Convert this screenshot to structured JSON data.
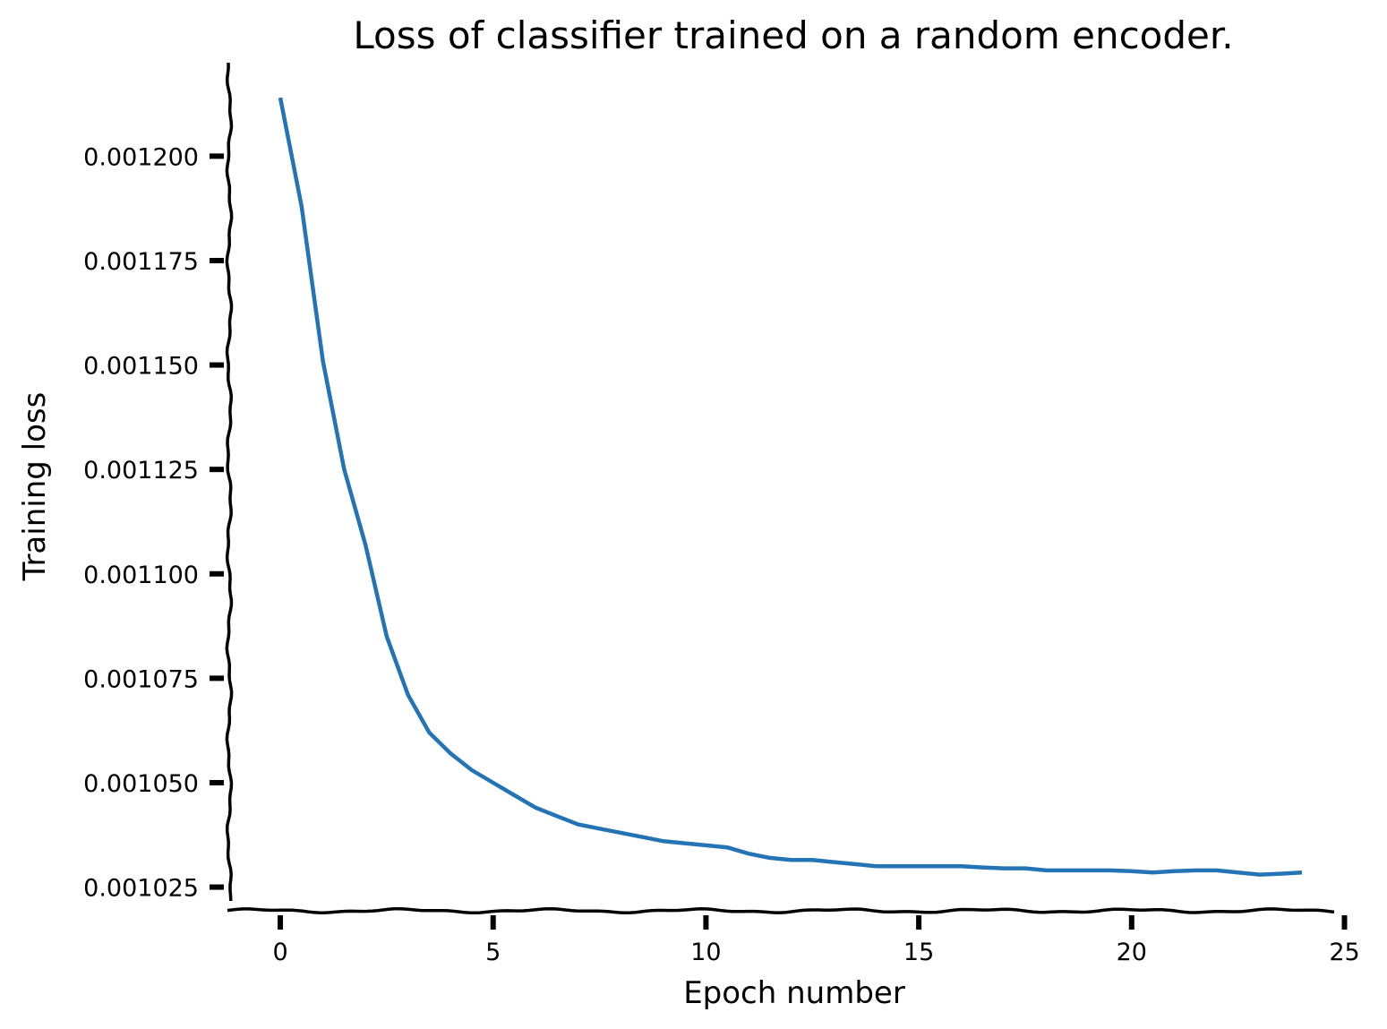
{
  "chart_data": {
    "type": "line",
    "title": "Loss of classifier trained on a random encoder.",
    "xlabel": "Epoch number",
    "ylabel": "Training loss",
    "xlim": [
      -1.2,
      25.2
    ],
    "ylim": [
      0.00101933,
      0.00122238
    ],
    "xticks": [
      0,
      5,
      10,
      15,
      20,
      25
    ],
    "xtick_labels": [
      "0",
      "5",
      "10",
      "15",
      "20",
      "25"
    ],
    "yticks": [
      0.001025,
      0.00105,
      0.001075,
      0.0011,
      0.001125,
      0.00115,
      0.001175,
      0.0012
    ],
    "ytick_labels": [
      "0.001025",
      "0.001050",
      "0.001075",
      "0.001100",
      "0.001125",
      "0.001150",
      "0.001175",
      "0.001200"
    ],
    "grid": false,
    "line_color": "#2474b5",
    "series": [
      {
        "x": [
          0,
          0.5,
          1,
          1.5,
          2,
          2.5,
          3,
          3.5,
          4,
          4.5,
          5,
          5.5,
          6,
          6.5,
          7,
          7.5,
          8,
          8.5,
          9,
          9.5,
          10,
          10.5,
          11,
          11.5,
          12,
          12.5,
          13,
          13.5,
          14,
          14.5,
          15,
          15.5,
          16,
          16.5,
          17,
          17.5,
          18,
          18.5,
          19,
          19.5,
          20,
          20.5,
          21,
          21.5,
          22,
          22.5,
          23,
          23.5,
          24
        ],
        "y": [
          0.001214,
          0.001188,
          0.001151,
          0.001125,
          0.001107,
          0.001085,
          0.001071,
          0.001062,
          0.001057,
          0.001053,
          0.00105,
          0.001047,
          0.001044,
          0.001042,
          0.00104,
          0.001039,
          0.001038,
          0.001037,
          0.001036,
          0.0010355,
          0.001035,
          0.0010345,
          0.001033,
          0.001032,
          0.0010315,
          0.0010315,
          0.001031,
          0.0010305,
          0.00103,
          0.00103,
          0.00103,
          0.00103,
          0.00103,
          0.0010297,
          0.0010295,
          0.0010295,
          0.001029,
          0.001029,
          0.001029,
          0.001029,
          0.0010288,
          0.0010285,
          0.0010288,
          0.001029,
          0.001029,
          0.0010285,
          0.001028,
          0.0010282,
          0.0010285
        ]
      }
    ]
  }
}
